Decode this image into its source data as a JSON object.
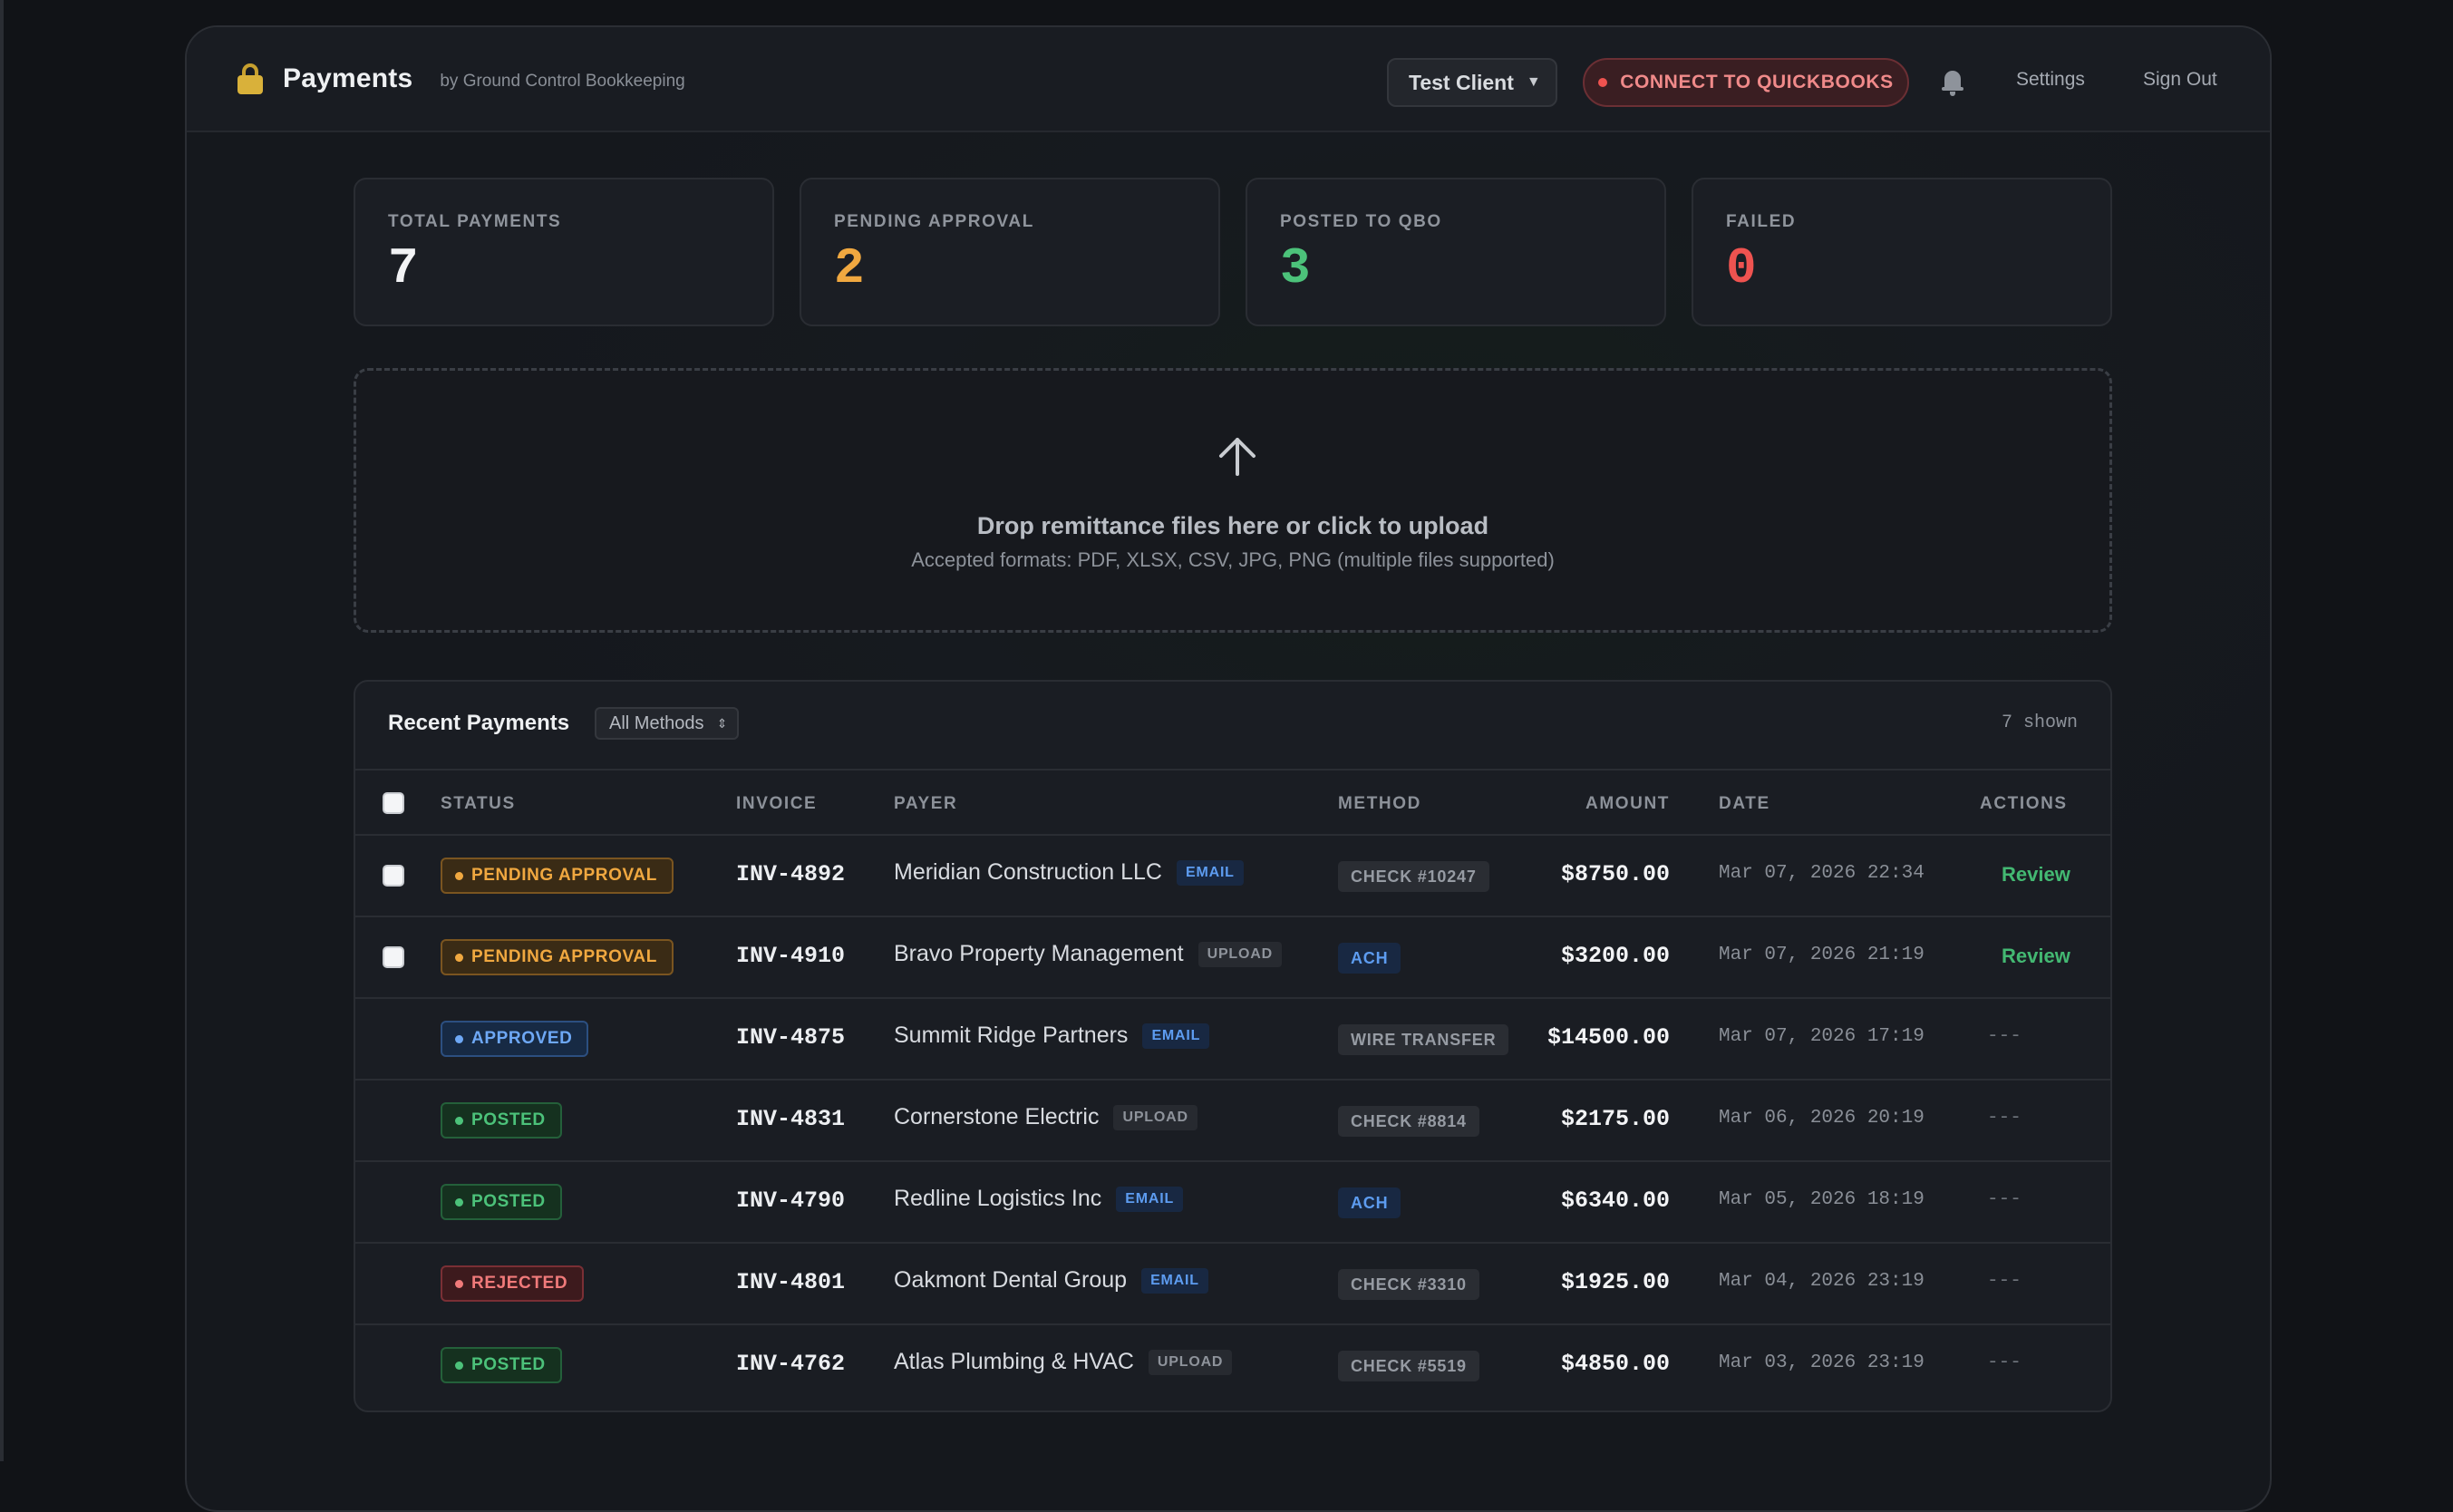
{
  "header": {
    "title": "Payments",
    "subtitle": "by Ground Control Bookkeeping",
    "client_select": "Test Client",
    "qbo_button": "CONNECT TO QUICKBOOKS",
    "settings": "Settings",
    "sign_out": "Sign Out"
  },
  "stats": [
    {
      "label": "TOTAL PAYMENTS",
      "value": "7",
      "color": "#f2f3f5"
    },
    {
      "label": "PENDING APPROVAL",
      "value": "2",
      "color": "#f0a840"
    },
    {
      "label": "POSTED TO QBO",
      "value": "3",
      "color": "#4cc27a"
    },
    {
      "label": "FAILED",
      "value": "0",
      "color": "#ef5350"
    }
  ],
  "upload": {
    "title": "Drop remittance files here or click to upload",
    "subtitle": "Accepted formats: PDF, XLSX, CSV, JPG, PNG (multiple files supported)"
  },
  "table": {
    "title": "Recent Payments",
    "filter": "All Methods",
    "shown": "7 shown",
    "columns": {
      "status": "STATUS",
      "invoice": "INVOICE",
      "payer": "PAYER",
      "method": "METHOD",
      "amount": "AMOUNT",
      "date": "DATE",
      "actions": "ACTIONS"
    },
    "rows": [
      {
        "status": "PENDING APPROVAL",
        "status_kind": "pending",
        "selectable": true,
        "invoice": "INV-4892",
        "payer": "Meridian Construction LLC",
        "source": "EMAIL",
        "method": "CHECK #10247",
        "method_kind": "check",
        "amount": "$8750.00",
        "date": "Mar 07, 2026 22:34",
        "action": "Review"
      },
      {
        "status": "PENDING APPROVAL",
        "status_kind": "pending",
        "selectable": true,
        "invoice": "INV-4910",
        "payer": "Bravo Property Management",
        "source": "UPLOAD",
        "method": "ACH",
        "method_kind": "ach",
        "amount": "$3200.00",
        "date": "Mar 07, 2026 21:19",
        "action": "Review"
      },
      {
        "status": "APPROVED",
        "status_kind": "approved",
        "selectable": false,
        "invoice": "INV-4875",
        "payer": "Summit Ridge Partners",
        "source": "EMAIL",
        "method": "WIRE TRANSFER",
        "method_kind": "wire",
        "amount": "$14500.00",
        "date": "Mar 07, 2026 17:19",
        "action": "---"
      },
      {
        "status": "POSTED",
        "status_kind": "posted",
        "selectable": false,
        "invoice": "INV-4831",
        "payer": "Cornerstone Electric",
        "source": "UPLOAD",
        "method": "CHECK #8814",
        "method_kind": "check",
        "amount": "$2175.00",
        "date": "Mar 06, 2026 20:19",
        "action": "---"
      },
      {
        "status": "POSTED",
        "status_kind": "posted",
        "selectable": false,
        "invoice": "INV-4790",
        "payer": "Redline Logistics Inc",
        "source": "EMAIL",
        "method": "ACH",
        "method_kind": "ach",
        "amount": "$6340.00",
        "date": "Mar 05, 2026 18:19",
        "action": "---"
      },
      {
        "status": "REJECTED",
        "status_kind": "rejected",
        "selectable": false,
        "invoice": "INV-4801",
        "payer": "Oakmont Dental Group",
        "source": "EMAIL",
        "method": "CHECK #3310",
        "method_kind": "check",
        "amount": "$1925.00",
        "date": "Mar 04, 2026 23:19",
        "action": "---"
      },
      {
        "status": "POSTED",
        "status_kind": "posted",
        "selectable": false,
        "invoice": "INV-4762",
        "payer": "Atlas Plumbing & HVAC",
        "source": "UPLOAD",
        "method": "CHECK #5519",
        "method_kind": "check",
        "amount": "$4850.00",
        "date": "Mar 03, 2026 23:19",
        "action": "---"
      }
    ]
  }
}
